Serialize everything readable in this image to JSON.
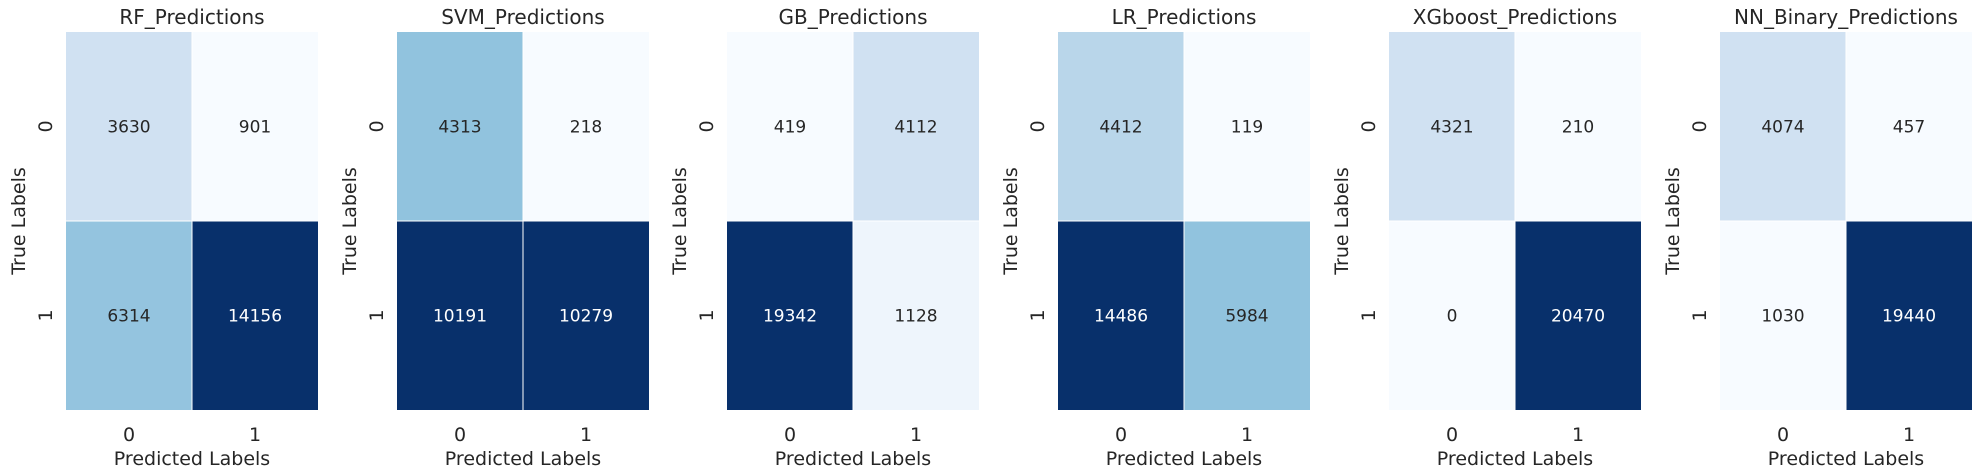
{
  "chart_data": [
    {
      "type": "heatmap",
      "title": "RF_Predictions",
      "xlabel": "Predicted Labels",
      "ylabel": "True Labels",
      "x_ticks": [
        "0",
        "1"
      ],
      "y_ticks": [
        "0",
        "1"
      ],
      "matrix": [
        [
          3630,
          901
        ],
        [
          6314,
          14156
        ]
      ],
      "colorscale": "Blues",
      "cell_colors": [
        [
          "#d0e1f2",
          "#f7fbff"
        ],
        [
          "#94c4df",
          "#08306b"
        ]
      ]
    },
    {
      "type": "heatmap",
      "title": "SVM_Predictions",
      "xlabel": "Predicted Labels",
      "ylabel": "True Labels",
      "x_ticks": [
        "0",
        "1"
      ],
      "y_ticks": [
        "0",
        "1"
      ],
      "matrix": [
        [
          4313,
          218
        ],
        [
          10191,
          10279
        ]
      ],
      "colorscale": "Blues",
      "cell_colors": [
        [
          "#91c3de",
          "#f7fbff"
        ],
        [
          "#08306b",
          "#08306b"
        ]
      ]
    },
    {
      "type": "heatmap",
      "title": "GB_Predictions",
      "xlabel": "Predicted Labels",
      "ylabel": "True Labels",
      "x_ticks": [
        "0",
        "1"
      ],
      "y_ticks": [
        "0",
        "1"
      ],
      "matrix": [
        [
          419,
          4112
        ],
        [
          19342,
          1128
        ]
      ],
      "colorscale": "Blues",
      "cell_colors": [
        [
          "#f7fbff",
          "#d0e1f2"
        ],
        [
          "#08306b",
          "#eef5fc"
        ]
      ]
    },
    {
      "type": "heatmap",
      "title": "LR_Predictions",
      "xlabel": "Predicted Labels",
      "ylabel": "True Labels",
      "x_ticks": [
        "0",
        "1"
      ],
      "y_ticks": [
        "0",
        "1"
      ],
      "matrix": [
        [
          4412,
          119
        ],
        [
          14486,
          5984
        ]
      ],
      "colorscale": "Blues",
      "cell_colors": [
        [
          "#b9d6ea",
          "#f7fbff"
        ],
        [
          "#08306b",
          "#91c3de"
        ]
      ]
    },
    {
      "type": "heatmap",
      "title": "XGboost_Predictions",
      "xlabel": "Predicted Labels",
      "ylabel": "True Labels",
      "x_ticks": [
        "0",
        "1"
      ],
      "y_ticks": [
        "0",
        "1"
      ],
      "matrix": [
        [
          4321,
          210
        ],
        [
          0,
          20470
        ]
      ],
      "colorscale": "Blues",
      "cell_colors": [
        [
          "#d0e1f2",
          "#f7fbff"
        ],
        [
          "#f7fbff",
          "#08306b"
        ]
      ]
    },
    {
      "type": "heatmap",
      "title": "NN_Binary_Predictions",
      "xlabel": "Predicted Labels",
      "ylabel": "True Labels",
      "x_ticks": [
        "0",
        "1"
      ],
      "y_ticks": [
        "0",
        "1"
      ],
      "matrix": [
        [
          4074,
          457
        ],
        [
          1030,
          19440
        ]
      ],
      "colorscale": "Blues",
      "cell_colors": [
        [
          "#d0e1f2",
          "#f7fbff"
        ],
        [
          "#f7fbff",
          "#08306b"
        ]
      ]
    }
  ]
}
